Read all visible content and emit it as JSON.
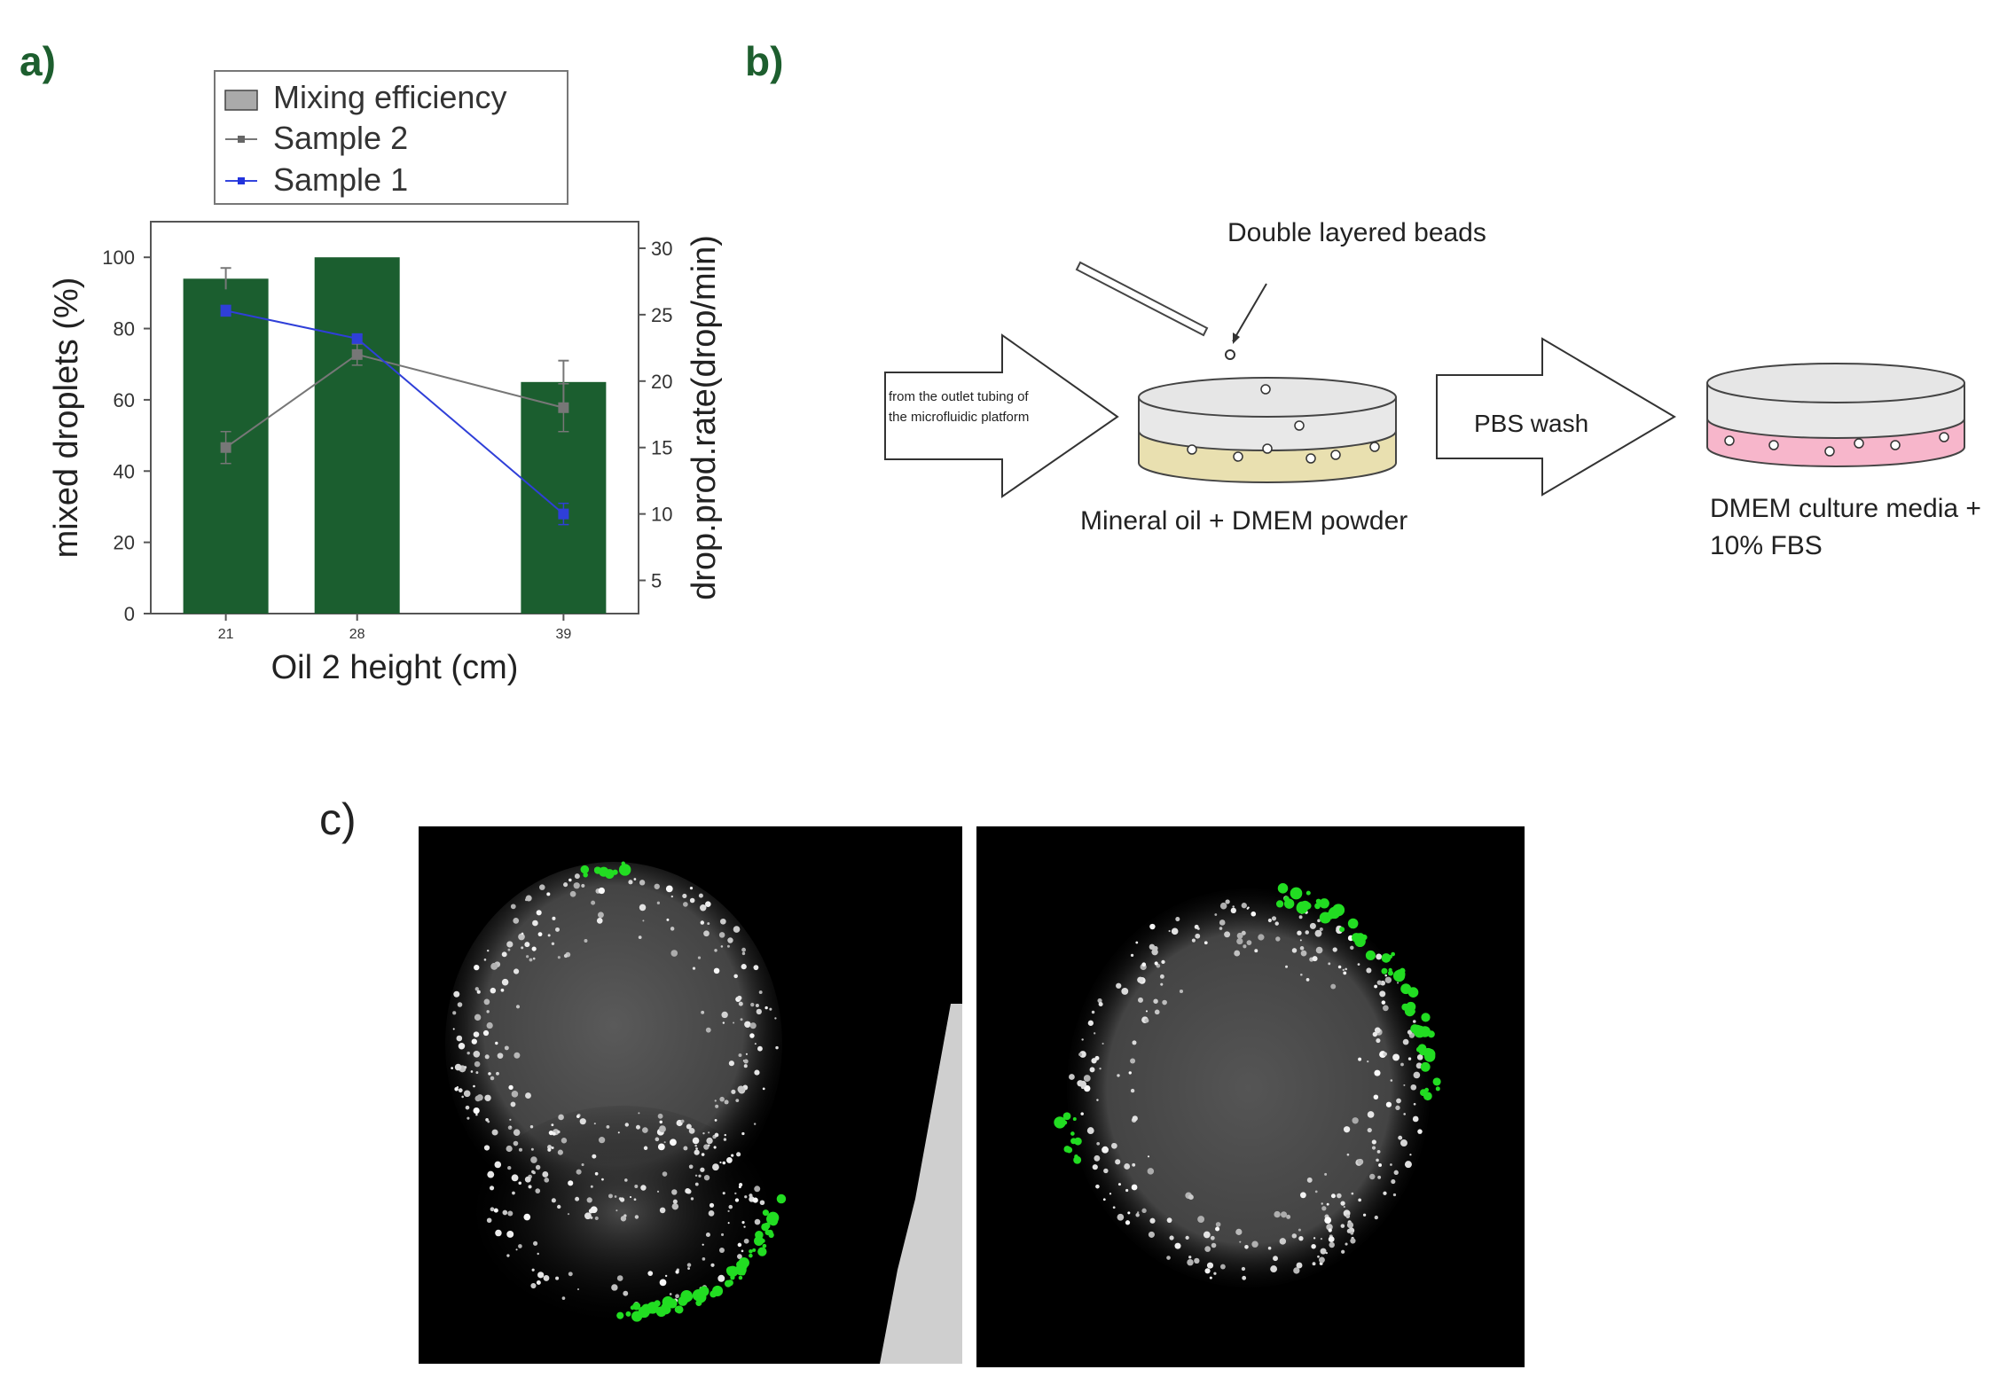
{
  "panels": {
    "a": "a)",
    "b": "b)",
    "c": "c)"
  },
  "chart_data": {
    "type": "bar",
    "xlabel": "Oil 2 height (cm)",
    "ylabel": "mixed droplets (%)",
    "y2label": "drop.prod.rate(drop/min)",
    "categories": [
      "21",
      "28",
      "39"
    ],
    "x": [
      21,
      28,
      39
    ],
    "xlim": [
      17,
      43
    ],
    "ylim": [
      0,
      110
    ],
    "y2lim": [
      2.5,
      32
    ],
    "yticks": [
      0,
      20,
      40,
      60,
      80,
      100
    ],
    "y2ticks": [
      5,
      10,
      15,
      20,
      25,
      30
    ],
    "series": [
      {
        "name": "Mixing efficiency",
        "axis": "left",
        "kind": "bar",
        "values": [
          94,
          100,
          65
        ],
        "errors": [
          3,
          0,
          6
        ],
        "color": "#1b5e2f"
      },
      {
        "name": "Sample 2",
        "axis": "right",
        "kind": "line",
        "values": [
          15,
          22,
          18
        ],
        "errors": [
          1.2,
          0.8,
          1.8
        ],
        "color": "#777777"
      },
      {
        "name": "Sample 1",
        "axis": "right",
        "kind": "line",
        "values": [
          25.3,
          23.2,
          10
        ],
        "errors": [
          0.4,
          0.3,
          0.8
        ],
        "color": "#2f3fd8"
      }
    ],
    "legend_position": "top"
  },
  "diagram": {
    "arrow1_text_line1": "from the outlet tubing of",
    "arrow1_text_line2": "the microfluidic platform",
    "beads_label": "Double layered beads",
    "dish1_label": "Mineral oil + DMEM powder",
    "arrow2_text": "PBS wash",
    "dish2_label_line1": "DMEM culture media +",
    "dish2_label_line2": "10% FBS",
    "oil_color": "#e9e0b0",
    "media_color": "#f7b6cb"
  },
  "images": {
    "left": "fluorescence-micrograph-bead-1",
    "right": "fluorescence-micrograph-bead-2",
    "highlight_color": "#22dd22"
  }
}
